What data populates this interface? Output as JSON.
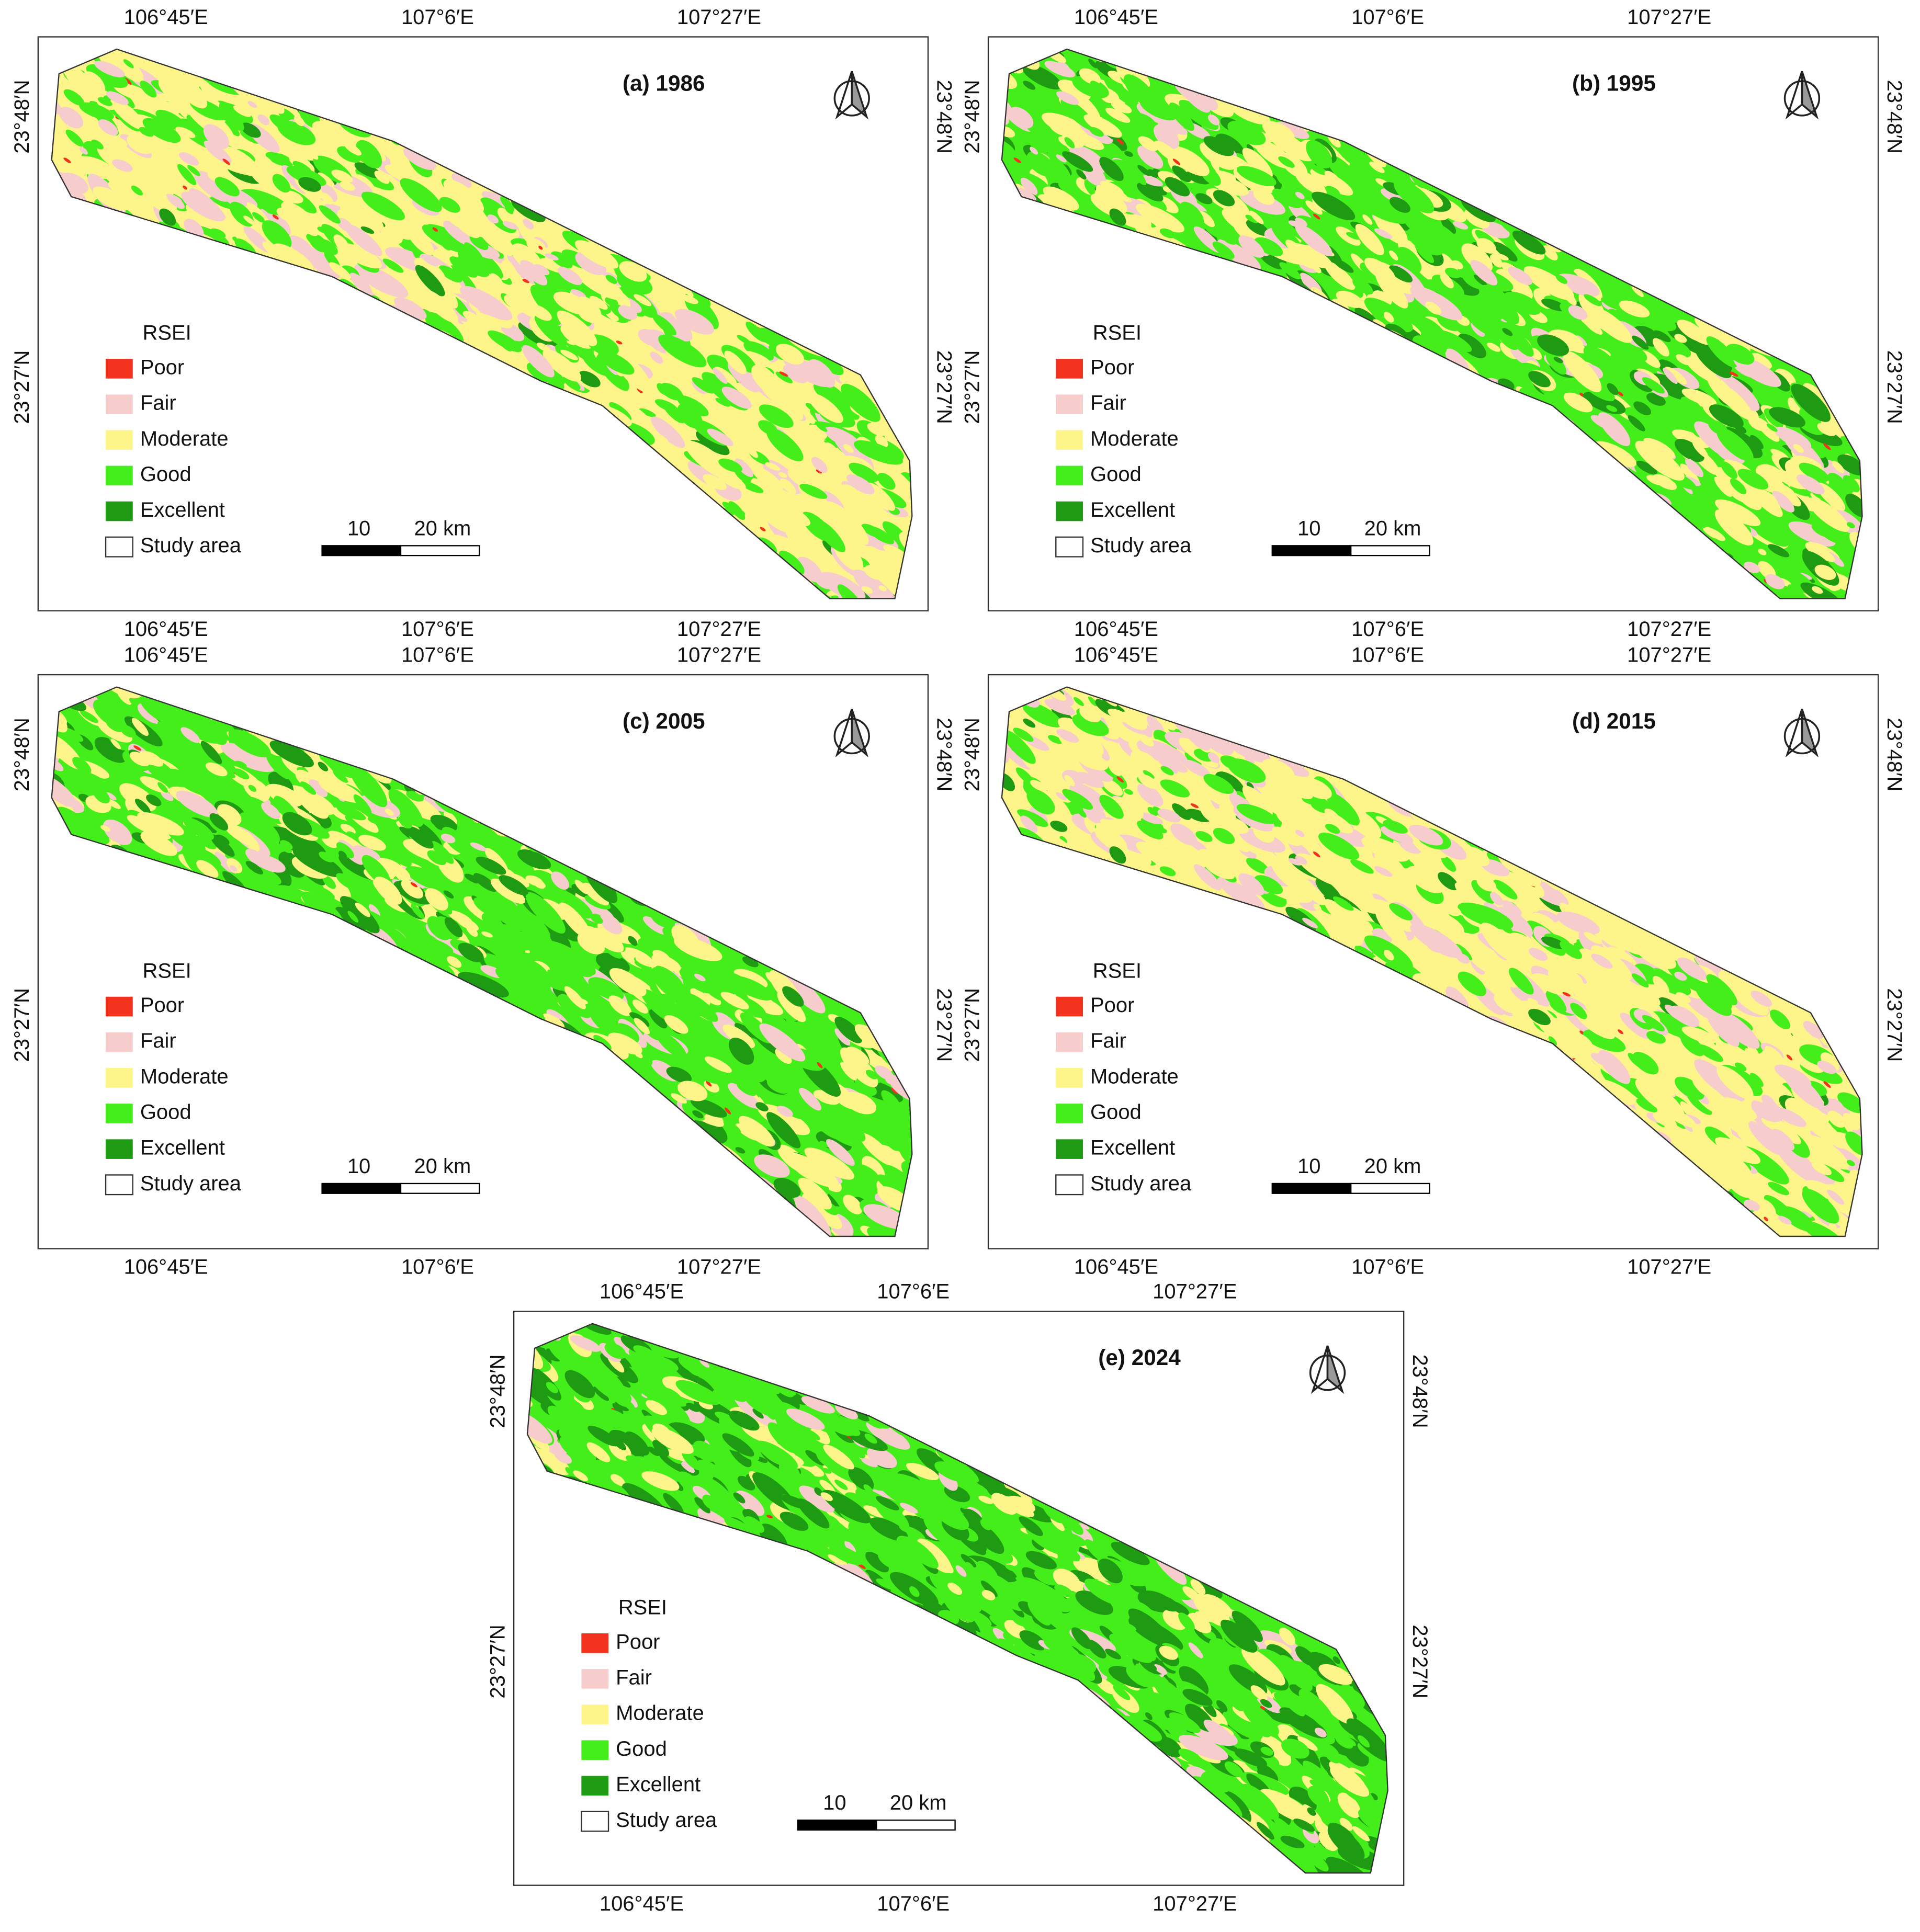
{
  "panels": [
    {
      "title": "(a) 1986"
    },
    {
      "title": "(b) 1995"
    },
    {
      "title": "(c) 2005"
    },
    {
      "title": "(d) 2015"
    },
    {
      "title": "(e) 2024"
    }
  ],
  "lon_labels": [
    "106°45′E",
    "107°6′E",
    "107°27′E"
  ],
  "lat_labels": [
    "23°48′N",
    "23°27′N"
  ],
  "legend": {
    "title": "RSEI",
    "items": [
      {
        "label": "Poor",
        "color": "#f2321c"
      },
      {
        "label": "Fair",
        "color": "#f7cccc"
      },
      {
        "label": "Moderate",
        "color": "#fdf58a"
      },
      {
        "label": "Good",
        "color": "#44ee1a"
      },
      {
        "label": "Excellent",
        "color": "#1e9b12"
      },
      {
        "label": "Study area",
        "color": "#ffffff"
      }
    ]
  },
  "scale_bar": {
    "labels": [
      "10",
      "20 km"
    ]
  }
}
